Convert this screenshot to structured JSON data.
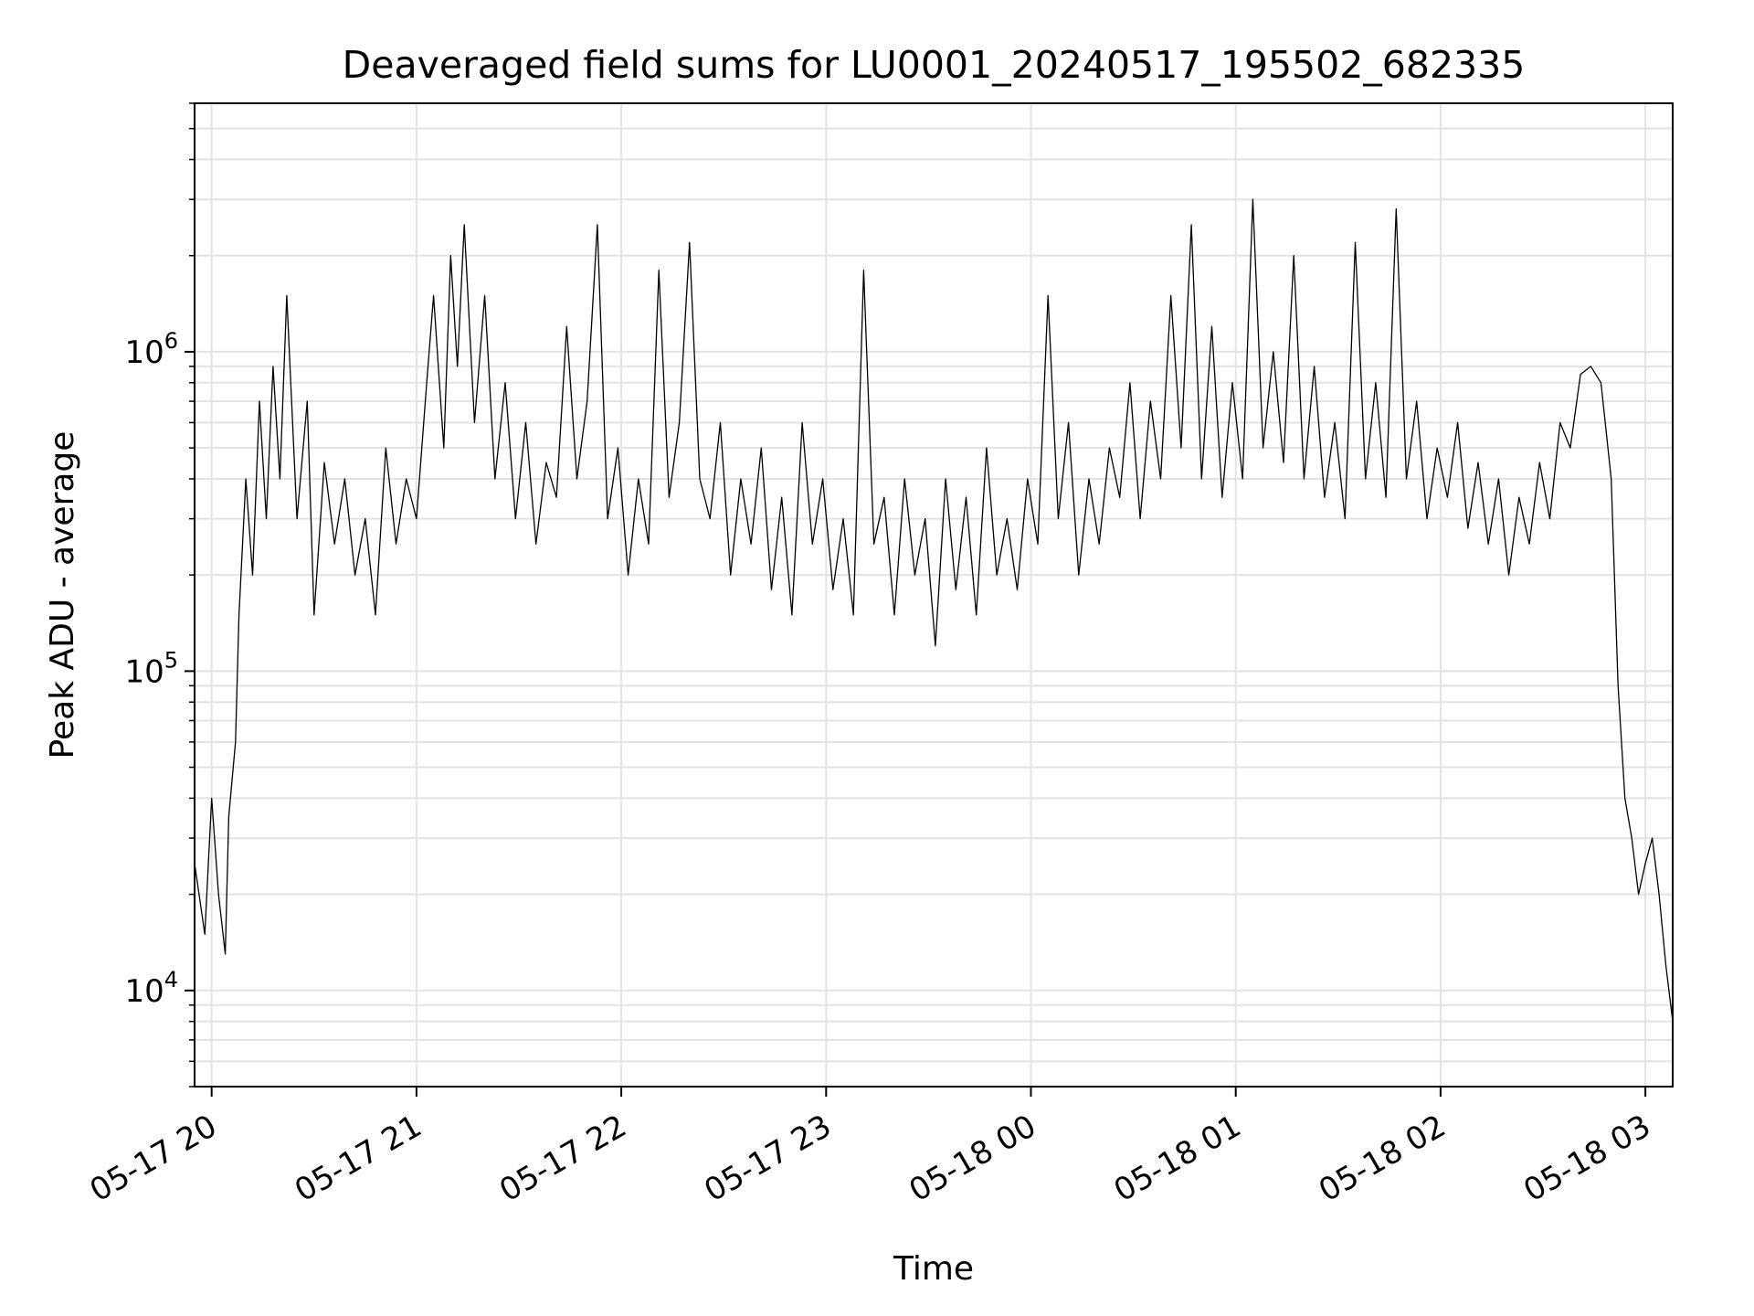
{
  "chart_data": {
    "type": "line",
    "title": "Deaveraged field sums for LU0001_20240517_195502_682335",
    "xlabel": "Time",
    "ylabel": "Peak ADU - average",
    "x_ticks": [
      "05-17 20",
      "05-17 21",
      "05-17 22",
      "05-17 23",
      "05-18 00",
      "05-18 01",
      "05-18 02",
      "05-18 03"
    ],
    "y_ticks": [
      {
        "value": 10000,
        "base": "10",
        "exp": "4"
      },
      {
        "value": 100000,
        "base": "10",
        "exp": "5"
      },
      {
        "value": 1000000,
        "base": "10",
        "exp": "6"
      }
    ],
    "xlim": [
      "2024-05-17 19:55",
      "2024-05-18 03:08"
    ],
    "ylim": [
      5000,
      6000000
    ],
    "yscale": "log",
    "grid": true,
    "series": [
      {
        "color": "#000000",
        "x": [
          "2024-05-17 19:55",
          "2024-05-17 19:58",
          "2024-05-17 20:00",
          "2024-05-17 20:02",
          "2024-05-17 20:04",
          "2024-05-17 20:05",
          "2024-05-17 20:07",
          "2024-05-17 20:08",
          "2024-05-17 20:10",
          "2024-05-17 20:12",
          "2024-05-17 20:14",
          "2024-05-17 20:16",
          "2024-05-17 20:18",
          "2024-05-17 20:20",
          "2024-05-17 20:22",
          "2024-05-17 20:25",
          "2024-05-17 20:28",
          "2024-05-17 20:30",
          "2024-05-17 20:33",
          "2024-05-17 20:36",
          "2024-05-17 20:39",
          "2024-05-17 20:42",
          "2024-05-17 20:45",
          "2024-05-17 20:48",
          "2024-05-17 20:51",
          "2024-05-17 20:54",
          "2024-05-17 20:57",
          "2024-05-17 21:00",
          "2024-05-17 21:03",
          "2024-05-17 21:05",
          "2024-05-17 21:08",
          "2024-05-17 21:10",
          "2024-05-17 21:12",
          "2024-05-17 21:14",
          "2024-05-17 21:17",
          "2024-05-17 21:20",
          "2024-05-17 21:23",
          "2024-05-17 21:26",
          "2024-05-17 21:29",
          "2024-05-17 21:32",
          "2024-05-17 21:35",
          "2024-05-17 21:38",
          "2024-05-17 21:41",
          "2024-05-17 21:44",
          "2024-05-17 21:47",
          "2024-05-17 21:50",
          "2024-05-17 21:53",
          "2024-05-17 21:56",
          "2024-05-17 21:59",
          "2024-05-17 22:02",
          "2024-05-17 22:05",
          "2024-05-17 22:08",
          "2024-05-17 22:11",
          "2024-05-17 22:14",
          "2024-05-17 22:17",
          "2024-05-17 22:20",
          "2024-05-17 22:23",
          "2024-05-17 22:26",
          "2024-05-17 22:29",
          "2024-05-17 22:32",
          "2024-05-17 22:35",
          "2024-05-17 22:38",
          "2024-05-17 22:41",
          "2024-05-17 22:44",
          "2024-05-17 22:47",
          "2024-05-17 22:50",
          "2024-05-17 22:53",
          "2024-05-17 22:56",
          "2024-05-17 22:59",
          "2024-05-17 23:02",
          "2024-05-17 23:05",
          "2024-05-17 23:08",
          "2024-05-17 23:11",
          "2024-05-17 23:14",
          "2024-05-17 23:17",
          "2024-05-17 23:20",
          "2024-05-17 23:23",
          "2024-05-17 23:26",
          "2024-05-17 23:29",
          "2024-05-17 23:32",
          "2024-05-17 23:35",
          "2024-05-17 23:38",
          "2024-05-17 23:41",
          "2024-05-17 23:44",
          "2024-05-17 23:47",
          "2024-05-17 23:50",
          "2024-05-17 23:53",
          "2024-05-17 23:56",
          "2024-05-17 23:59",
          "2024-05-18 00:02",
          "2024-05-18 00:05",
          "2024-05-18 00:08",
          "2024-05-18 00:11",
          "2024-05-18 00:14",
          "2024-05-18 00:17",
          "2024-05-18 00:20",
          "2024-05-18 00:23",
          "2024-05-18 00:26",
          "2024-05-18 00:29",
          "2024-05-18 00:32",
          "2024-05-18 00:35",
          "2024-05-18 00:38",
          "2024-05-18 00:41",
          "2024-05-18 00:44",
          "2024-05-18 00:47",
          "2024-05-18 00:50",
          "2024-05-18 00:53",
          "2024-05-18 00:56",
          "2024-05-18 00:59",
          "2024-05-18 01:02",
          "2024-05-18 01:05",
          "2024-05-18 01:08",
          "2024-05-18 01:11",
          "2024-05-18 01:14",
          "2024-05-18 01:17",
          "2024-05-18 01:20",
          "2024-05-18 01:23",
          "2024-05-18 01:26",
          "2024-05-18 01:29",
          "2024-05-18 01:32",
          "2024-05-18 01:35",
          "2024-05-18 01:38",
          "2024-05-18 01:41",
          "2024-05-18 01:44",
          "2024-05-18 01:47",
          "2024-05-18 01:50",
          "2024-05-18 01:53",
          "2024-05-18 01:56",
          "2024-05-18 01:59",
          "2024-05-18 02:02",
          "2024-05-18 02:05",
          "2024-05-18 02:08",
          "2024-05-18 02:11",
          "2024-05-18 02:14",
          "2024-05-18 02:17",
          "2024-05-18 02:20",
          "2024-05-18 02:23",
          "2024-05-18 02:26",
          "2024-05-18 02:29",
          "2024-05-18 02:32",
          "2024-05-18 02:35",
          "2024-05-18 02:38",
          "2024-05-18 02:41",
          "2024-05-18 02:44",
          "2024-05-18 02:47",
          "2024-05-18 02:50",
          "2024-05-18 02:52",
          "2024-05-18 02:54",
          "2024-05-18 02:56",
          "2024-05-18 02:58",
          "2024-05-18 03:00",
          "2024-05-18 03:02",
          "2024-05-18 03:04",
          "2024-05-18 03:06",
          "2024-05-18 03:08"
        ],
        "y": [
          25000,
          15000,
          40000,
          20000,
          13000,
          35000,
          60000,
          150000,
          400000,
          200000,
          700000,
          300000,
          900000,
          400000,
          1500000,
          300000,
          700000,
          150000,
          450000,
          250000,
          400000,
          200000,
          300000,
          150000,
          500000,
          250000,
          400000,
          300000,
          800000,
          1500000,
          500000,
          2000000,
          900000,
          2500000,
          600000,
          1500000,
          400000,
          800000,
          300000,
          600000,
          250000,
          450000,
          350000,
          1200000,
          400000,
          700000,
          2500000,
          300000,
          500000,
          200000,
          400000,
          250000,
          1800000,
          350000,
          600000,
          2200000,
          400000,
          300000,
          600000,
          200000,
          400000,
          250000,
          500000,
          180000,
          350000,
          150000,
          600000,
          250000,
          400000,
          180000,
          300000,
          150000,
          1800000,
          250000,
          350000,
          150000,
          400000,
          200000,
          300000,
          120000,
          400000,
          180000,
          350000,
          150000,
          500000,
          200000,
          300000,
          180000,
          400000,
          250000,
          1500000,
          300000,
          600000,
          200000,
          400000,
          250000,
          500000,
          350000,
          800000,
          300000,
          700000,
          400000,
          1500000,
          500000,
          2500000,
          400000,
          1200000,
          350000,
          800000,
          400000,
          3000000,
          500000,
          1000000,
          450000,
          2000000,
          400000,
          900000,
          350000,
          600000,
          300000,
          2200000,
          400000,
          800000,
          350000,
          2800000,
          400000,
          700000,
          300000,
          500000,
          350000,
          600000,
          280000,
          450000,
          250000,
          400000,
          200000,
          350000,
          250000,
          450000,
          300000,
          600000,
          500000,
          850000,
          900000,
          800000,
          400000,
          90000,
          40000,
          30000,
          20000,
          25000,
          30000,
          20000,
          12000,
          8000
        ]
      }
    ]
  }
}
